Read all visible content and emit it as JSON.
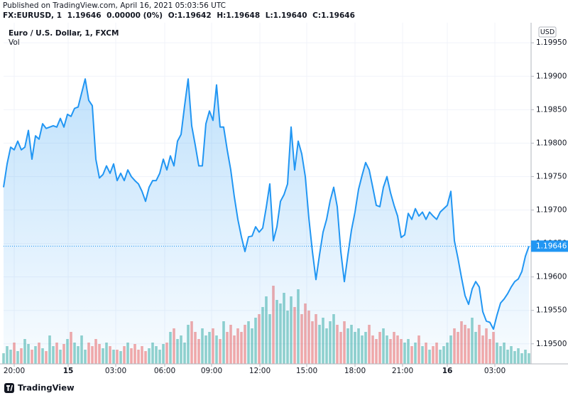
{
  "header": {
    "published": "Published on TradingView.com, April 16, 2021 05:03:56 UTC",
    "symbol": "FX:EURUSD, 1",
    "last": "1.19646",
    "change": "0.00000 (0%)",
    "ohlc": [
      "O:1.19642",
      "H:1.19648",
      "L:1.19640",
      "C:1.19646"
    ]
  },
  "chart_data": {
    "type": "line",
    "currency": "USD",
    "series": [
      {
        "name": "Euro / U.S. Dollar, 1, FXCM",
        "color": "#2196f3",
        "values": [
          1.19734,
          1.19769,
          1.19794,
          1.1979,
          1.19803,
          1.1979,
          1.19794,
          1.19819,
          1.19776,
          1.19811,
          1.19806,
          1.19829,
          1.19822,
          1.19824,
          1.19826,
          1.19824,
          1.19837,
          1.19824,
          1.19843,
          1.1984,
          1.19852,
          1.19854,
          1.19875,
          1.19896,
          1.19864,
          1.19856,
          1.19776,
          1.19748,
          1.19753,
          1.19766,
          1.19755,
          1.19769,
          1.19744,
          1.19755,
          1.19744,
          1.1976,
          1.1975,
          1.19744,
          1.19739,
          1.19728,
          1.19713,
          1.19734,
          1.19744,
          1.19744,
          1.19755,
          1.19776,
          1.1976,
          1.19781,
          1.19766,
          1.19803,
          1.19813,
          1.19856,
          1.19896,
          1.19826,
          1.19797,
          1.19766,
          1.19766,
          1.19829,
          1.19848,
          1.19834,
          1.19887,
          1.19824,
          1.19824,
          1.1979,
          1.1976,
          1.1972,
          1.19686,
          1.1966,
          1.19638,
          1.1966,
          1.19661,
          1.19675,
          1.19667,
          1.19673,
          1.19704,
          1.19739,
          1.19654,
          1.19675,
          1.19713,
          1.19723,
          1.19739,
          1.19824,
          1.1976,
          1.19803,
          1.19784,
          1.1975,
          1.19688,
          1.19638,
          1.19596,
          1.19633,
          1.19667,
          1.19686,
          1.19714,
          1.19734,
          1.19705,
          1.19638,
          1.19593,
          1.19633,
          1.1967,
          1.19697,
          1.19731,
          1.19752,
          1.19771,
          1.1976,
          1.19734,
          1.19707,
          1.19705,
          1.19734,
          1.1975,
          1.19726,
          1.19707,
          1.19691,
          1.19659,
          1.19663,
          1.19695,
          1.19686,
          1.19702,
          1.19691,
          1.19697,
          1.19686,
          1.19697,
          1.19691,
          1.19686,
          1.19697,
          1.19702,
          1.19707,
          1.19728,
          1.19654,
          1.19628,
          1.19599,
          1.19572,
          1.19559,
          1.19582,
          1.19593,
          1.19585,
          1.19548,
          1.19534,
          1.19532,
          1.19522,
          1.19543,
          1.19561,
          1.19567,
          1.19575,
          1.19585,
          1.19593,
          1.19597,
          1.19608,
          1.19631,
          1.19646
        ]
      }
    ],
    "volume": {
      "name": "Vol",
      "up_color": "rgba(38,166,154,0.5)",
      "down_color": "rgba(239,83,80,0.5)",
      "ylim": [
        0,
        480
      ],
      "values": [
        15,
        25,
        20,
        30,
        18,
        22,
        35,
        28,
        20,
        25,
        30,
        22,
        18,
        40,
        25,
        30,
        20,
        28,
        35,
        45,
        30,
        25,
        40,
        20,
        30,
        25,
        35,
        28,
        22,
        30,
        25,
        20,
        20,
        18,
        25,
        30,
        22,
        28,
        20,
        25,
        18,
        22,
        30,
        25,
        20,
        28,
        30,
        45,
        50,
        35,
        40,
        30,
        55,
        60,
        45,
        35,
        50,
        40,
        45,
        50,
        40,
        35,
        60,
        45,
        55,
        40,
        50,
        45,
        55,
        60,
        50,
        65,
        70,
        80,
        95,
        70,
        110,
        90,
        85,
        100,
        75,
        95,
        80,
        105,
        70,
        85,
        75,
        60,
        70,
        55,
        65,
        50,
        60,
        70,
        55,
        45,
        60,
        50,
        55,
        45,
        50,
        40,
        45,
        55,
        40,
        35,
        45,
        50,
        40,
        35,
        45,
        40,
        35,
        30,
        35,
        25,
        30,
        40,
        25,
        30,
        20,
        25,
        30,
        20,
        25,
        30,
        40,
        50,
        45,
        60,
        55,
        50,
        65,
        45,
        55,
        40,
        50,
        35,
        45,
        30,
        25,
        30,
        20,
        25,
        18,
        22,
        15,
        20,
        15
      ]
    },
    "xlim": [
      0,
      148.6
    ],
    "xticks": [
      {
        "value": 3,
        "label": "20:00"
      },
      {
        "value": 18.2,
        "label": "15"
      },
      {
        "value": 31.6,
        "label": "03:00"
      },
      {
        "value": 45.4,
        "label": "06:00"
      },
      {
        "value": 58.6,
        "label": "09:00"
      },
      {
        "value": 72.2,
        "label": "12:00"
      },
      {
        "value": 85.4,
        "label": "15:00"
      },
      {
        "value": 99,
        "label": "18:00"
      },
      {
        "value": 112.4,
        "label": "21:00"
      },
      {
        "value": 125,
        "label": "16"
      },
      {
        "value": 138.4,
        "label": "03:00"
      }
    ],
    "ylim": [
      1.1947,
      1.1998
    ],
    "yticks": [
      {
        "value": 1.1995,
        "label": "1.19950"
      },
      {
        "value": 1.199,
        "label": "1.19900"
      },
      {
        "value": 1.1985,
        "label": "1.19850"
      },
      {
        "value": 1.198,
        "label": "1.19800"
      },
      {
        "value": 1.1975,
        "label": "1.19750"
      },
      {
        "value": 1.197,
        "label": "1.19700"
      },
      {
        "value": 1.1965,
        "label": "1.19650"
      },
      {
        "value": 1.196,
        "label": "1.19600"
      },
      {
        "value": 1.1955,
        "label": "1.19550"
      },
      {
        "value": 1.195,
        "label": "1.19500"
      }
    ],
    "grid": true
  },
  "footer": "TradingView"
}
